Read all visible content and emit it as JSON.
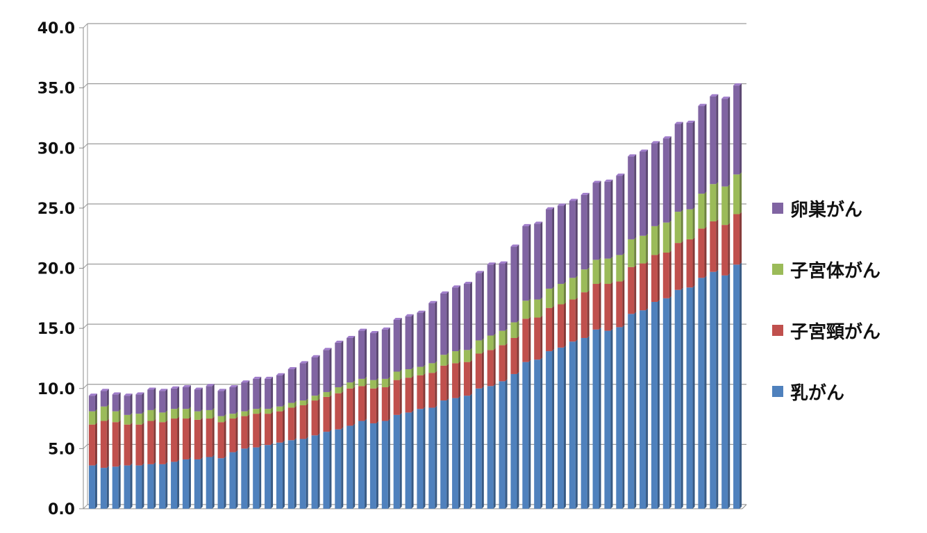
{
  "chart_data": {
    "type": "bar",
    "stacked": true,
    "three_d": true,
    "ylim": [
      0,
      40
    ],
    "yticks": [
      "0.0",
      "5.0",
      "10.0",
      "15.0",
      "20.0",
      "25.0",
      "30.0",
      "35.0",
      "40.0"
    ],
    "grid": true,
    "legend_position": "right",
    "series": [
      {
        "name": "乳がん",
        "color": "#4F81BD",
        "values": [
          3.6,
          3.4,
          3.5,
          3.6,
          3.6,
          3.7,
          3.7,
          3.9,
          4.1,
          4.1,
          4.3,
          4.2,
          4.7,
          5.0,
          5.1,
          5.3,
          5.5,
          5.7,
          5.8,
          6.1,
          6.4,
          6.6,
          6.9,
          7.3,
          7.1,
          7.3,
          7.8,
          8.0,
          8.3,
          8.4,
          9.0,
          9.2,
          9.4,
          10.0,
          10.2,
          10.6,
          11.2,
          12.2,
          12.4,
          13.1,
          13.4,
          13.9,
          14.2,
          14.9,
          14.8,
          15.1,
          16.2,
          16.5,
          17.2,
          17.5,
          18.2,
          18.4,
          19.2,
          19.7,
          19.4,
          20.3
        ]
      },
      {
        "name": "子宮頸がん",
        "color": "#C0504D",
        "values": [
          3.4,
          3.9,
          3.7,
          3.4,
          3.4,
          3.6,
          3.5,
          3.6,
          3.4,
          3.3,
          3.2,
          3.0,
          2.8,
          2.7,
          2.8,
          2.6,
          2.6,
          2.7,
          2.8,
          2.9,
          2.9,
          3.0,
          3.1,
          2.9,
          2.9,
          2.8,
          2.9,
          2.9,
          2.8,
          2.9,
          2.9,
          2.9,
          2.8,
          2.9,
          3.0,
          3.0,
          3.0,
          3.6,
          3.5,
          3.6,
          3.6,
          3.5,
          3.8,
          3.8,
          3.9,
          3.8,
          3.9,
          3.9,
          3.9,
          3.8,
          3.9,
          4.0,
          4.1,
          4.2,
          4.2,
          4.2
        ]
      },
      {
        "name": "子宮体がん",
        "color": "#9BBB59",
        "values": [
          1.1,
          1.2,
          0.9,
          0.8,
          0.9,
          0.9,
          0.8,
          0.8,
          0.8,
          0.7,
          0.7,
          0.5,
          0.4,
          0.4,
          0.4,
          0.4,
          0.4,
          0.4,
          0.4,
          0.4,
          0.4,
          0.5,
          0.5,
          0.6,
          0.7,
          0.7,
          0.7,
          0.7,
          0.7,
          0.8,
          0.9,
          1.0,
          1.0,
          1.1,
          1.2,
          1.2,
          1.3,
          1.5,
          1.5,
          1.6,
          1.7,
          1.8,
          1.9,
          2.0,
          2.1,
          2.2,
          2.3,
          2.3,
          2.4,
          2.5,
          2.6,
          2.5,
          2.9,
          3.1,
          3.2,
          3.3
        ]
      },
      {
        "name": "卵巣がん",
        "color": "#8064A2",
        "values": [
          1.3,
          1.3,
          1.4,
          1.6,
          1.6,
          1.7,
          1.8,
          1.7,
          1.8,
          1.8,
          2.0,
          2.1,
          2.2,
          2.4,
          2.5,
          2.5,
          2.6,
          2.8,
          3.1,
          3.2,
          3.5,
          3.7,
          3.7,
          4.0,
          3.9,
          4.1,
          4.3,
          4.4,
          4.5,
          5.0,
          5.1,
          5.3,
          5.5,
          5.6,
          5.9,
          5.6,
          6.3,
          6.2,
          6.3,
          6.6,
          6.5,
          6.4,
          6.2,
          6.4,
          6.4,
          6.6,
          6.9,
          7.0,
          6.9,
          7.0,
          7.3,
          7.2,
          7.3,
          7.3,
          7.3,
          7.4
        ]
      }
    ]
  }
}
